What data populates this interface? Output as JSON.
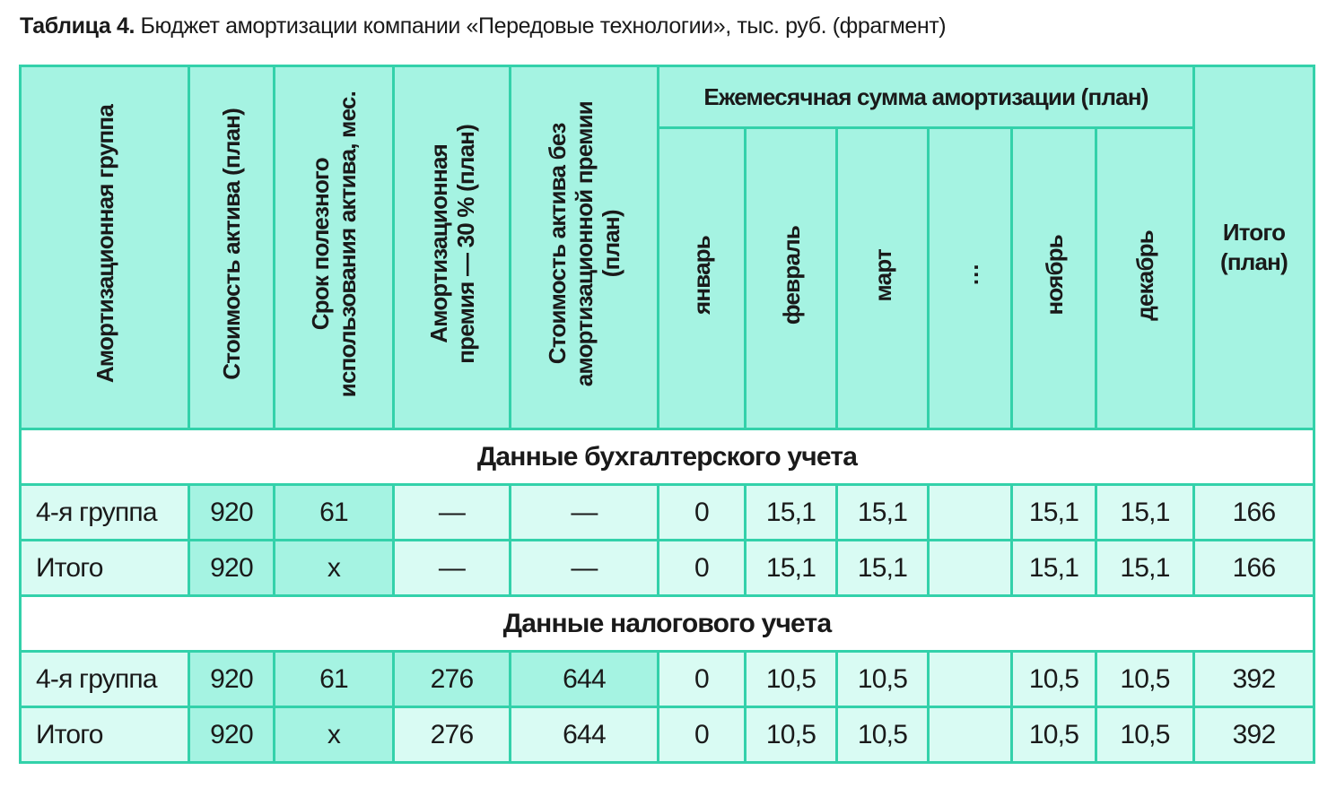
{
  "title": {
    "bold": "Таблица 4.",
    "text": " Бюджет амортизации компании «Передовые технологии», тыс. руб. (фрагмент)"
  },
  "headers": {
    "group": "Амортизационная группа",
    "cost": "Стоимость актива (план)",
    "term_line1": "Срок полезного",
    "term_line2": "использования актива, мес.",
    "bonus_line1": "Амортизационная",
    "bonus_line2": "премия — 30 % (план)",
    "net_line1": "Стоимость актива без",
    "net_line2": "амортизационной премии",
    "net_line3": "(план)",
    "monthly": "Ежемесячная сумма амортизации (план)",
    "months": [
      "январь",
      "февраль",
      "март",
      "…",
      "ноябрь",
      "декабрь"
    ],
    "total_line1": "Итого",
    "total_line2": "(план)"
  },
  "sections": [
    {
      "title": "Данные бухгалтерского учета",
      "rows": [
        {
          "cells": [
            "4-я группа",
            "920",
            "61",
            "—",
            "—",
            "0",
            "15,1",
            "15,1",
            "",
            "15,1",
            "15,1",
            "166"
          ]
        },
        {
          "cells": [
            "Итого",
            "920",
            "x",
            "—",
            "—",
            "0",
            "15,1",
            "15,1",
            "",
            "15,1",
            "15,1",
            "166"
          ]
        }
      ]
    },
    {
      "title": "Данные налогового учета",
      "rows": [
        {
          "cells": [
            "4-я группа",
            "920",
            "61",
            "276",
            "644",
            "0",
            "10,5",
            "10,5",
            "",
            "10,5",
            "10,5",
            "392"
          ]
        },
        {
          "cells": [
            "Итого",
            "920",
            "x",
            "276",
            "644",
            "0",
            "10,5",
            "10,5",
            "",
            "10,5",
            "10,5",
            "392"
          ]
        }
      ]
    }
  ],
  "colors": {
    "header_bg": "#a5f3e2",
    "row_bg": "#d9fbf3",
    "border": "#33d1aa"
  }
}
